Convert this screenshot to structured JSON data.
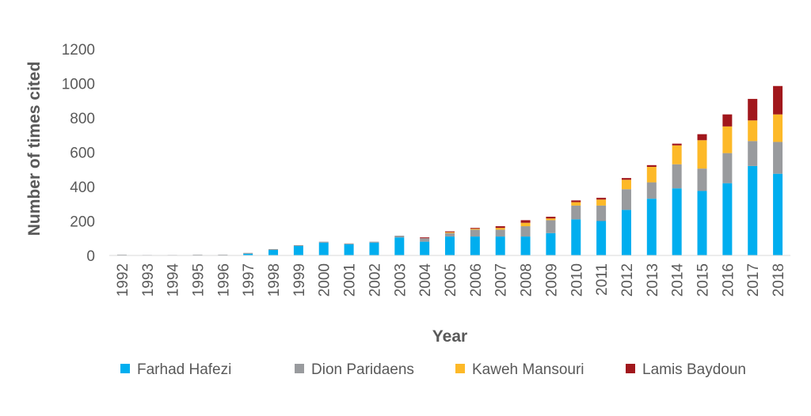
{
  "chart_data": {
    "type": "bar",
    "stacked": true,
    "title": "",
    "xlabel": "Year",
    "ylabel": "Number of times cited",
    "ylim": [
      0,
      1200
    ],
    "yticks": [
      "0",
      "200",
      "400",
      "600",
      "800",
      "1000",
      "1200"
    ],
    "grid": false,
    "legend_position": "bottom",
    "categories": [
      "1992",
      "1993",
      "1994",
      "1995",
      "1996",
      "1997",
      "1998",
      "1999",
      "2000",
      "2001",
      "2002",
      "2003",
      "2004",
      "2005",
      "2006",
      "2007",
      "2008",
      "2009",
      "2010",
      "2011",
      "2012",
      "2013",
      "2014",
      "2015",
      "2016",
      "2017",
      "2018"
    ],
    "series": [
      {
        "name": "Farhad Hafezi",
        "color": "#00aeef",
        "values": [
          0,
          0,
          0,
          0,
          2,
          10,
          32,
          55,
          75,
          65,
          75,
          105,
          80,
          110,
          110,
          110,
          110,
          130,
          210,
          200,
          265,
          330,
          390,
          375,
          420,
          520,
          475
        ]
      },
      {
        "name": "Dion Paridaens",
        "color": "#999b9e",
        "values": [
          5,
          3,
          3,
          5,
          3,
          5,
          5,
          5,
          5,
          5,
          5,
          10,
          20,
          20,
          40,
          40,
          60,
          75,
          80,
          90,
          120,
          95,
          140,
          130,
          175,
          145,
          185
        ]
      },
      {
        "name": "Kaweh Mansouri",
        "color": "#fdb928",
        "values": [
          0,
          0,
          0,
          0,
          0,
          0,
          0,
          0,
          0,
          0,
          0,
          0,
          0,
          5,
          5,
          10,
          20,
          10,
          20,
          35,
          55,
          90,
          110,
          165,
          155,
          120,
          160
        ]
      },
      {
        "name": "Lamis Baydoun",
        "color": "#a1171c",
        "values": [
          0,
          0,
          0,
          0,
          0,
          0,
          0,
          0,
          0,
          0,
          0,
          0,
          5,
          5,
          5,
          10,
          15,
          10,
          10,
          10,
          10,
          10,
          10,
          35,
          70,
          125,
          165
        ]
      }
    ]
  }
}
